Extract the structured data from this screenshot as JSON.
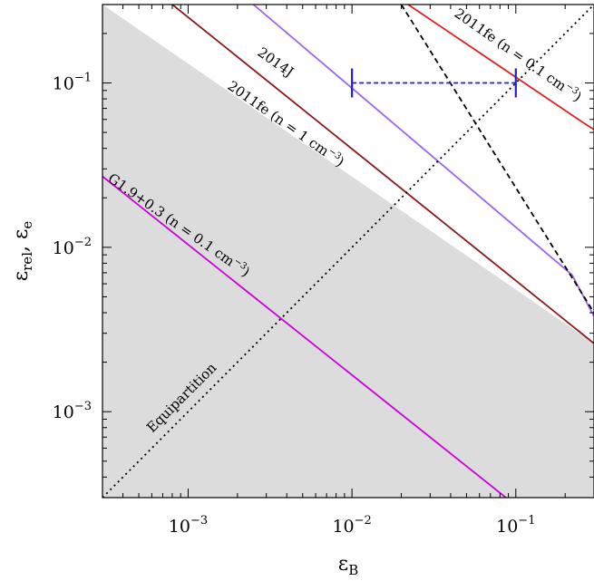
{
  "chart_data": {
    "type": "line",
    "x_scale": "log",
    "y_scale": "log",
    "xlim": [
      0.0003,
      0.3
    ],
    "ylim": [
      0.0003,
      0.3
    ],
    "xlabel": {
      "main": "ε",
      "sub": "B"
    },
    "ylabel": {
      "main": "ε",
      "sub": "rel",
      "rest": ", ε",
      "sub2": "e"
    },
    "x_ticks": [
      {
        "value": 0.001,
        "base": "10",
        "exp": "−3"
      },
      {
        "value": 0.01,
        "base": "10",
        "exp": "−2"
      },
      {
        "value": 0.1,
        "base": "10",
        "exp": "−1"
      }
    ],
    "y_ticks": [
      {
        "value": 0.001,
        "base": "10",
        "exp": "−3"
      },
      {
        "value": 0.01,
        "base": "10",
        "exp": "−2"
      },
      {
        "value": 0.1,
        "base": "10",
        "exp": "−1"
      }
    ],
    "shaded_region": {
      "color": "#dcdcdc",
      "boundary": [
        [
          0.0003,
          0.3
        ],
        [
          0.3,
          0.0026
        ]
      ]
    },
    "series": [
      {
        "id": "g19",
        "color": "#cc00dd",
        "style": "solid",
        "points": [
          [
            0.0003,
            0.027
          ],
          [
            0.087,
            0.0003
          ]
        ],
        "label": {
          "main": "G1.9+0.3 (n = 0.1 cm",
          "sup": "−3",
          "tail": ")"
        }
      },
      {
        "id": "fe1",
        "color": "#8b1a1a",
        "style": "solid",
        "points": [
          [
            0.0008,
            0.3
          ],
          [
            0.3,
            0.0026
          ]
        ],
        "label": {
          "main": "2011fe (n = 1 cm",
          "sup": "−3",
          "tail": ")"
        }
      },
      {
        "id": "j14",
        "color": "#9966ee",
        "style": "solid",
        "points": [
          [
            0.0025,
            0.3
          ],
          [
            0.22,
            0.0068
          ],
          [
            0.3,
            0.0038
          ]
        ],
        "label": {
          "main": "2014J",
          "sup": "",
          "tail": ""
        }
      },
      {
        "id": "fe01",
        "color": "#dd2222",
        "style": "solid",
        "points": [
          [
            0.022,
            0.3
          ],
          [
            0.26,
            0.057
          ],
          [
            0.3,
            0.052
          ]
        ],
        "label": {
          "main": "2011fe (n = 0.1 cm",
          "sup": "−3",
          "tail": ")"
        }
      },
      {
        "id": "dash",
        "color": "#000000",
        "style": "dashed",
        "points": [
          [
            0.02,
            0.3
          ],
          [
            0.3,
            0.004
          ]
        ]
      },
      {
        "id": "equip",
        "color": "#000000",
        "style": "dotted",
        "points": [
          [
            0.0003,
            0.0003
          ],
          [
            0.3,
            0.3
          ]
        ],
        "label": {
          "main": "Equipartition",
          "sup": "",
          "tail": ""
        }
      }
    ],
    "range_marker": {
      "color": "#2222cc",
      "y": 0.1,
      "x_range": [
        0.01,
        0.1
      ]
    }
  }
}
